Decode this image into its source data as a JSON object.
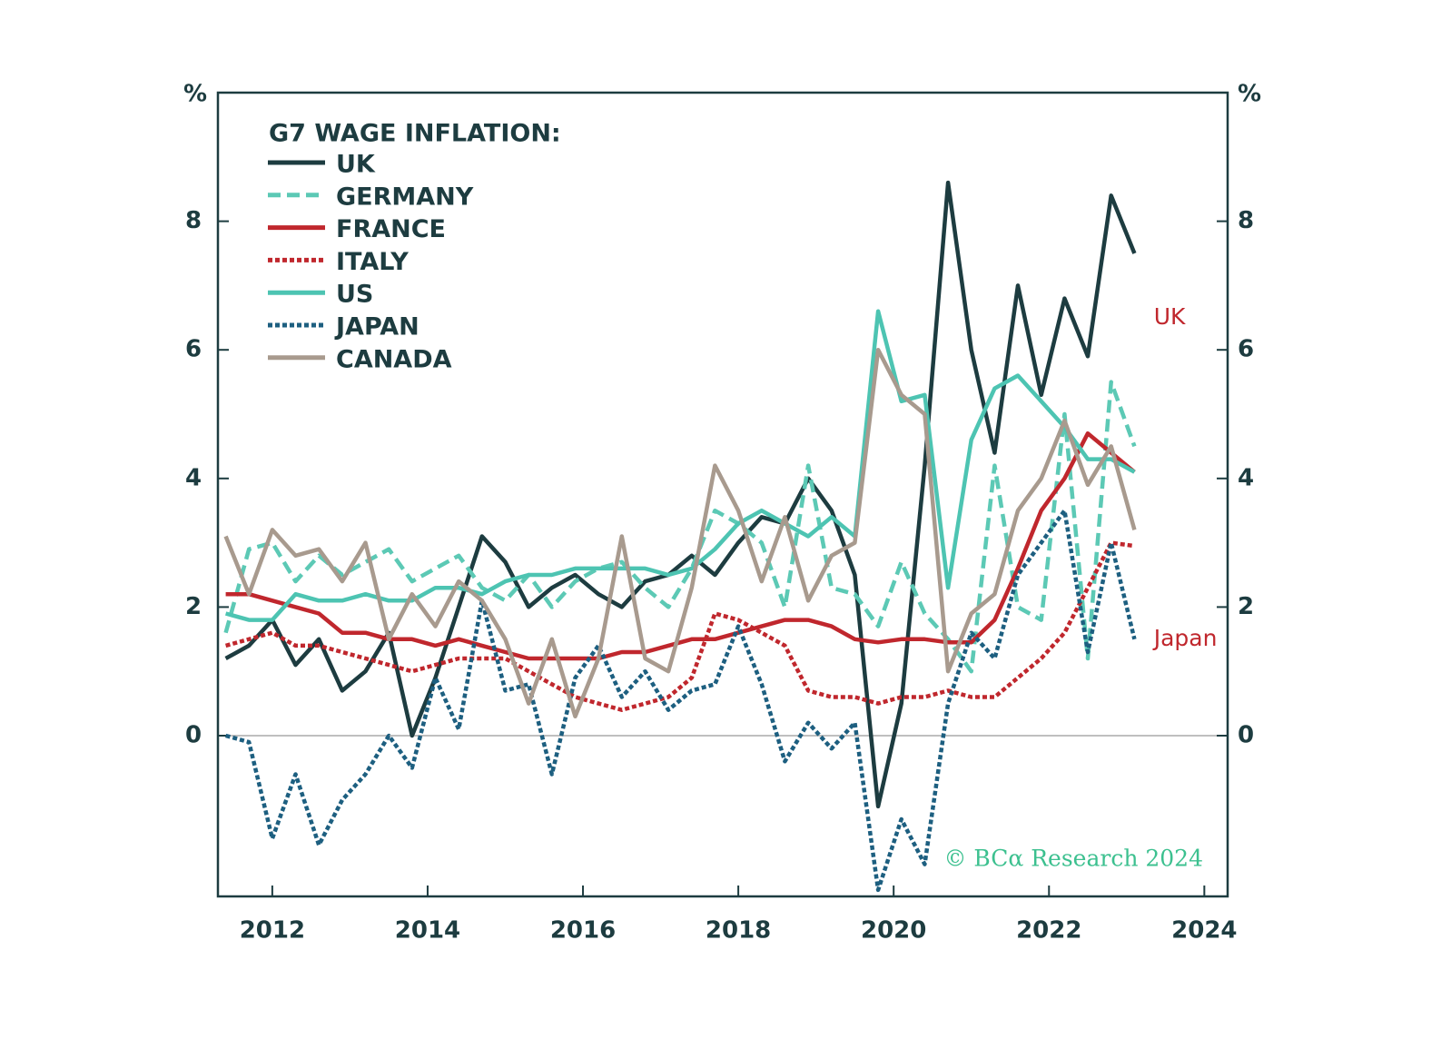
{
  "chart_data": {
    "type": "line",
    "title": "G7 WAGE INFLATION:",
    "y_unit": "%",
    "y2_unit": "%",
    "annotations": [
      {
        "text": "UK",
        "x": 2023.35,
        "y": 6.5,
        "color": "#c0272d"
      },
      {
        "text": "Japan",
        "x": 2023.35,
        "y": 1.5,
        "color": "#c0272d"
      }
    ],
    "source": "© BCα Research 2024",
    "x": [
      2011.4,
      2011.7,
      2012.0,
      2012.3,
      2012.6,
      2012.9,
      2013.2,
      2013.5,
      2013.8,
      2014.1,
      2014.4,
      2014.7,
      2015.0,
      2015.3,
      2015.6,
      2015.9,
      2016.2,
      2016.5,
      2016.8,
      2017.1,
      2017.4,
      2017.7,
      2018.0,
      2018.3,
      2018.6,
      2018.9,
      2019.2,
      2019.5,
      2019.8,
      2020.1,
      2020.4,
      2020.7,
      2021.0,
      2021.3,
      2021.6,
      2021.9,
      2022.2,
      2022.5,
      2022.8,
      2023.1
    ],
    "xlim": [
      2011.3,
      2024.3
    ],
    "xticks": [
      2012,
      2014,
      2016,
      2018,
      2020,
      2022,
      2024
    ],
    "ylim": [
      -2.5,
      10
    ],
    "yticks": [
      0,
      2,
      4,
      6,
      8
    ],
    "y2lim": [
      -2.5,
      10
    ],
    "y2ticks": [
      0,
      2,
      4,
      6,
      8
    ],
    "reference_line": 0,
    "series": [
      {
        "name": "UK",
        "color": "#1d3c40",
        "dash": "solid",
        "values": [
          1.2,
          1.4,
          1.8,
          1.1,
          1.5,
          0.7,
          1.0,
          1.6,
          0.0,
          0.9,
          2.0,
          3.1,
          2.7,
          2.0,
          2.3,
          2.5,
          2.2,
          2.0,
          2.4,
          2.5,
          2.8,
          2.5,
          3.0,
          3.4,
          3.3,
          4.0,
          3.5,
          2.5,
          -1.1,
          0.5,
          4.2,
          8.6,
          6.0,
          4.4,
          7.0,
          5.3,
          6.8,
          5.9,
          8.4,
          7.5
        ]
      },
      {
        "name": "GERMANY",
        "color": "#5cc9b5",
        "dash": "dashed",
        "values": [
          1.6,
          2.9,
          3.0,
          2.4,
          2.8,
          2.5,
          2.7,
          2.9,
          2.4,
          2.6,
          2.8,
          2.3,
          2.1,
          2.5,
          2.0,
          2.4,
          2.6,
          2.7,
          2.3,
          2.0,
          2.6,
          3.5,
          3.3,
          3.0,
          2.0,
          4.2,
          2.3,
          2.2,
          1.7,
          2.7,
          1.9,
          1.5,
          1.0,
          4.2,
          2.0,
          1.8,
          5.0,
          1.2,
          5.5,
          4.5
        ]
      },
      {
        "name": "FRANCE",
        "color": "#c0272d",
        "dash": "solid",
        "values": [
          2.2,
          2.2,
          2.1,
          2.0,
          1.9,
          1.6,
          1.6,
          1.5,
          1.5,
          1.4,
          1.5,
          1.4,
          1.3,
          1.2,
          1.2,
          1.2,
          1.2,
          1.3,
          1.3,
          1.4,
          1.5,
          1.5,
          1.6,
          1.7,
          1.8,
          1.8,
          1.7,
          1.5,
          1.45,
          1.5,
          1.5,
          1.45,
          1.45,
          1.8,
          2.6,
          3.5,
          4.0,
          4.7,
          4.4,
          4.1
        ]
      },
      {
        "name": "ITALY",
        "color": "#c0272d",
        "dash": "dotted",
        "values": [
          1.4,
          1.5,
          1.6,
          1.4,
          1.4,
          1.3,
          1.2,
          1.1,
          1.0,
          1.1,
          1.2,
          1.2,
          1.2,
          1.0,
          0.8,
          0.6,
          0.5,
          0.4,
          0.5,
          0.6,
          0.9,
          1.9,
          1.8,
          1.6,
          1.4,
          0.7,
          0.6,
          0.6,
          0.5,
          0.6,
          0.6,
          0.7,
          0.6,
          0.6,
          0.9,
          1.2,
          1.6,
          2.3,
          3.0,
          2.95
        ]
      },
      {
        "name": "US",
        "color": "#4dc4b2",
        "dash": "solid",
        "values": [
          1.9,
          1.8,
          1.8,
          2.2,
          2.1,
          2.1,
          2.2,
          2.1,
          2.1,
          2.3,
          2.3,
          2.2,
          2.4,
          2.5,
          2.5,
          2.6,
          2.6,
          2.6,
          2.6,
          2.5,
          2.6,
          2.9,
          3.3,
          3.5,
          3.3,
          3.1,
          3.4,
          3.1,
          6.6,
          5.2,
          5.3,
          2.3,
          4.6,
          5.4,
          5.6,
          5.2,
          4.8,
          4.3,
          4.3,
          4.1
        ]
      },
      {
        "name": "JAPAN",
        "color": "#1d5f80",
        "dash": "dotted",
        "values": [
          0,
          -0.1,
          -1.6,
          -0.6,
          -1.7,
          -1.0,
          -0.6,
          0.0,
          -0.5,
          0.9,
          0.1,
          2.1,
          0.7,
          0.8,
          -0.6,
          0.9,
          1.4,
          0.6,
          1.0,
          0.4,
          0.7,
          0.8,
          1.7,
          0.8,
          -0.4,
          0.2,
          -0.2,
          0.2,
          -2.4,
          -1.3,
          -2.0,
          0.5,
          1.6,
          1.2,
          2.5,
          3.0,
          3.5,
          1.3,
          3.0,
          1.5
        ]
      },
      {
        "name": "CANADA",
        "color": "#a89a8e",
        "dash": "solid",
        "values": [
          3.1,
          2.2,
          3.2,
          2.8,
          2.9,
          2.4,
          3.0,
          1.5,
          2.2,
          1.7,
          2.4,
          2.1,
          1.5,
          0.5,
          1.5,
          0.3,
          1.2,
          3.1,
          1.2,
          1.0,
          2.3,
          4.2,
          3.5,
          2.4,
          3.4,
          2.1,
          2.8,
          3.0,
          6.0,
          5.3,
          5.0,
          1.0,
          1.9,
          2.2,
          3.5,
          4.0,
          4.9,
          3.9,
          4.5,
          3.2
        ]
      }
    ]
  }
}
